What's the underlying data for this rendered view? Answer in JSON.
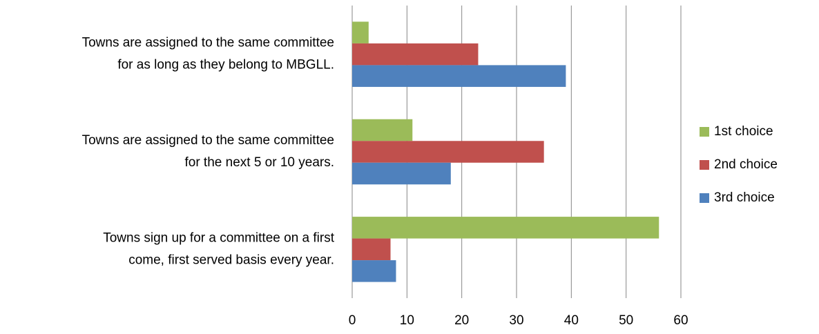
{
  "chart_data": {
    "type": "bar",
    "orientation": "horizontal",
    "categories": [
      "Towns are assigned to the same committee\nfor as long as they belong to MBGLL.",
      "Towns are assigned to the same committee\nfor the next 5 or 10 years.",
      "Towns sign up for a committee on a first\ncome, first served basis every year."
    ],
    "series": [
      {
        "name": "1st choice",
        "color": "#9bbb59",
        "values": [
          3,
          11,
          56
        ]
      },
      {
        "name": "2nd choice",
        "color": "#c0504d",
        "values": [
          23,
          35,
          7
        ]
      },
      {
        "name": "3rd choice",
        "color": "#4f81bd",
        "values": [
          39,
          18,
          8
        ]
      }
    ],
    "xlim": [
      0,
      60
    ],
    "xticks": [
      0,
      10,
      20,
      30,
      40,
      50,
      60
    ],
    "grid": true,
    "legend": "right"
  }
}
